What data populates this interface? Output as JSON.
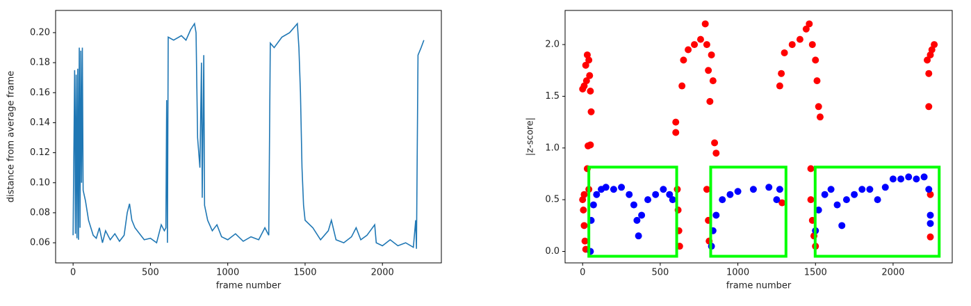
{
  "chart_data": [
    {
      "type": "line",
      "xlabel": "frame number",
      "ylabel": "distance from average frame",
      "color": "#1f77b4",
      "x": [
        0,
        10,
        15,
        20,
        25,
        30,
        35,
        40,
        45,
        50,
        55,
        60,
        65,
        80,
        100,
        130,
        150,
        170,
        190,
        210,
        240,
        270,
        300,
        330,
        350,
        365,
        380,
        400,
        430,
        460,
        500,
        540,
        570,
        590,
        600,
        605,
        610,
        615,
        650,
        700,
        730,
        760,
        785,
        795,
        805,
        820,
        830,
        835,
        845,
        850,
        870,
        900,
        930,
        960,
        1000,
        1050,
        1100,
        1150,
        1200,
        1240,
        1265,
        1275,
        1300,
        1350,
        1400,
        1450,
        1460,
        1470,
        1480,
        1490,
        1500,
        1550,
        1600,
        1650,
        1670,
        1700,
        1750,
        1800,
        1830,
        1860,
        1900,
        1950,
        1960,
        2000,
        2050,
        2100,
        2150,
        2200,
        2215,
        2220,
        2230,
        2250,
        2268
      ],
      "values": [
        0.065,
        0.175,
        0.066,
        0.172,
        0.063,
        0.176,
        0.062,
        0.19,
        0.07,
        0.188,
        0.1,
        0.19,
        0.095,
        0.088,
        0.075,
        0.065,
        0.063,
        0.07,
        0.06,
        0.068,
        0.062,
        0.066,
        0.061,
        0.065,
        0.08,
        0.086,
        0.075,
        0.07,
        0.066,
        0.062,
        0.063,
        0.06,
        0.072,
        0.068,
        0.07,
        0.155,
        0.06,
        0.197,
        0.195,
        0.198,
        0.195,
        0.202,
        0.206,
        0.2,
        0.13,
        0.11,
        0.18,
        0.09,
        0.185,
        0.085,
        0.075,
        0.068,
        0.072,
        0.064,
        0.062,
        0.066,
        0.061,
        0.064,
        0.062,
        0.07,
        0.065,
        0.193,
        0.19,
        0.197,
        0.2,
        0.206,
        0.19,
        0.16,
        0.11,
        0.085,
        0.075,
        0.07,
        0.062,
        0.068,
        0.075,
        0.062,
        0.06,
        0.064,
        0.07,
        0.062,
        0.065,
        0.072,
        0.06,
        0.058,
        0.062,
        0.058,
        0.06,
        0.057,
        0.075,
        0.056,
        0.185,
        0.19,
        0.195
      ],
      "xlim": [
        -113,
        2381
      ],
      "ylim": [
        0.0466,
        0.2148
      ],
      "xticks": [
        0,
        500,
        1000,
        1500,
        2000
      ],
      "yticks": [
        0.06,
        0.08,
        {
          "value": 0.1,
          "label": "0.10"
        },
        0.12,
        0.14,
        0.16,
        0.18,
        {
          "value": 0.2,
          "label": "0.20"
        }
      ]
    },
    {
      "type": "scatter",
      "xlabel": "frame number",
      "ylabel": "|z-score|",
      "series": [
        {
          "color": "#ff0000",
          "x": [
            0,
            10,
            20,
            25,
            30,
            40,
            45,
            50,
            55,
            35,
            50,
            0,
            5,
            10,
            15,
            20,
            10,
            30,
            40,
            600,
            600,
            610,
            615,
            620,
            625,
            640,
            650,
            680,
            720,
            760,
            790,
            800,
            810,
            820,
            830,
            840,
            850,
            860,
            800,
            810,
            815,
            1270,
            1280,
            1300,
            1350,
            1400,
            1440,
            1460,
            1480,
            1500,
            1510,
            1520,
            1530,
            1470,
            1470,
            1480,
            1490,
            1500,
            2220,
            2240,
            2250,
            2265,
            2230,
            2230,
            2240,
            2240,
            1285
          ],
          "values": [
            1.57,
            1.6,
            1.8,
            1.65,
            1.9,
            1.85,
            1.7,
            1.55,
            1.35,
            1.02,
            1.03,
            0.5,
            0.4,
            0.25,
            0.1,
            0.02,
            0.55,
            0.8,
            0.6,
            1.25,
            1.15,
            0.6,
            0.4,
            0.2,
            0.05,
            1.6,
            1.85,
            1.95,
            2.0,
            2.05,
            2.2,
            2.0,
            1.75,
            1.45,
            1.9,
            1.65,
            1.05,
            0.95,
            0.6,
            0.3,
            0.1,
            1.6,
            1.72,
            1.92,
            2.0,
            2.05,
            2.15,
            2.2,
            2.0,
            1.85,
            1.65,
            1.4,
            1.3,
            0.8,
            0.5,
            0.3,
            0.15,
            0.05,
            1.85,
            1.9,
            1.95,
            2.0,
            1.72,
            1.4,
            0.55,
            0.14,
            0.47
          ]
        },
        {
          "color": "#0000ff",
          "x": [
            50,
            55,
            70,
            90,
            120,
            150,
            200,
            250,
            300,
            330,
            350,
            360,
            380,
            420,
            470,
            520,
            560,
            580,
            830,
            840,
            860,
            900,
            950,
            1000,
            1100,
            1200,
            1250,
            1270,
            1500,
            1520,
            1560,
            1600,
            1640,
            1670,
            1700,
            1750,
            1800,
            1850,
            1900,
            1950,
            2000,
            2050,
            2100,
            2150,
            2200,
            2230,
            2240,
            2240
          ],
          "values": [
            0.0,
            0.3,
            0.45,
            0.55,
            0.6,
            0.62,
            0.6,
            0.62,
            0.55,
            0.45,
            0.3,
            0.15,
            0.35,
            0.5,
            0.55,
            0.6,
            0.55,
            0.5,
            0.05,
            0.2,
            0.35,
            0.5,
            0.55,
            0.58,
            0.6,
            0.62,
            0.5,
            0.6,
            0.2,
            0.4,
            0.55,
            0.6,
            0.45,
            0.25,
            0.5,
            0.55,
            0.6,
            0.6,
            0.5,
            0.62,
            0.7,
            0.7,
            0.72,
            0.7,
            0.72,
            0.6,
            0.35,
            0.27
          ]
        }
      ],
      "boxes": [
        {
          "x": [
            40,
            606
          ],
          "y": [
            -0.047,
            0.815
          ],
          "color": "#00ff00"
        },
        {
          "x": [
            825,
            1310
          ],
          "y": [
            -0.047,
            0.815
          ],
          "color": "#00ff00"
        },
        {
          "x": [
            1498,
            2297
          ],
          "y": [
            -0.047,
            0.815
          ],
          "color": "#00ff00"
        }
      ],
      "xlim": [
        -113,
        2381
      ],
      "ylim": [
        -0.111,
        2.33
      ],
      "xticks": [
        0,
        500,
        1000,
        1500,
        2000
      ],
      "yticks": [
        {
          "value": 0,
          "label": "0.0"
        },
        0.5,
        {
          "value": 1,
          "label": "1.0"
        },
        1.5,
        {
          "value": 2,
          "label": "2.0"
        }
      ]
    }
  ]
}
